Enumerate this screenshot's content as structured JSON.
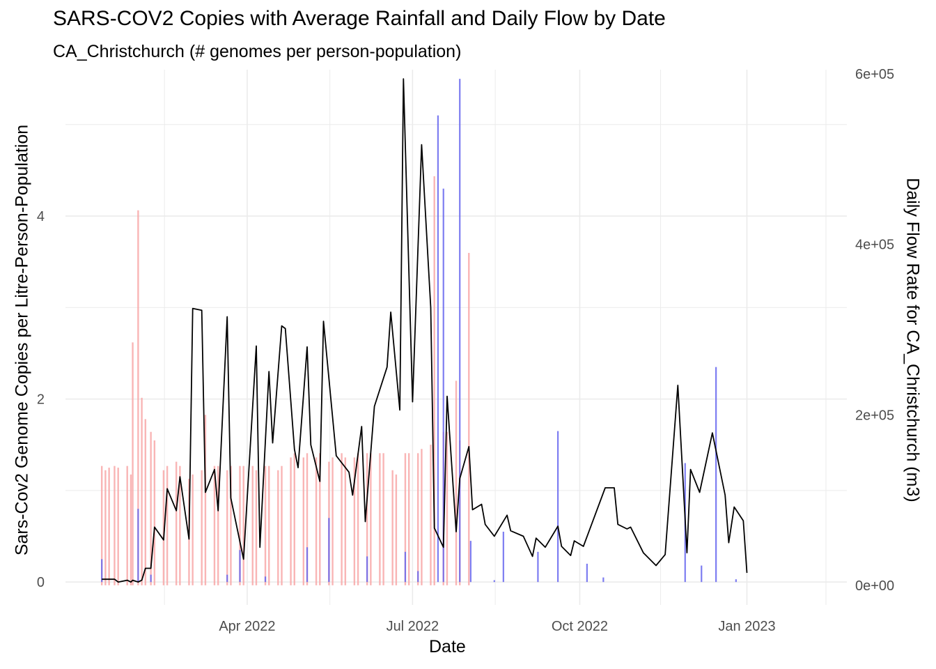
{
  "chart_data": {
    "type": "bar+line",
    "title": "SARS-COV2 Copies with Average Rainfall and Daily Flow by Date",
    "subtitle": "CA_Christchurch (# genomes per person-population)",
    "xlabel": "Date",
    "ylabel": "Sars-Cov2 Genome Copies per Litre-Person-Population",
    "y2label": "Daily Flow Rate for CA_Christchurch (m3)",
    "x_ticks": [
      "Apr 2022",
      "Jul 2022",
      "Oct 2022",
      "Jan 2023"
    ],
    "x_tick_dates": [
      "2022-04-01",
      "2022-07-01",
      "2022-10-01",
      "2023-01-01"
    ],
    "xlim": [
      "2021-12-22",
      "2023-02-25"
    ],
    "y_ticks": [
      "0",
      "2",
      "4"
    ],
    "ylim": [
      -0.25,
      5.6
    ],
    "y2_ticks": [
      "0e+00",
      "2e+05",
      "4e+05",
      "6e+05"
    ],
    "y2lim": [
      -23000,
      605000
    ],
    "grid": true,
    "colors": {
      "line": "#000000",
      "rain_bar": "#f8a8a8",
      "sars_bar": "#6666ee",
      "gridline": "#ebebeb"
    },
    "series": [
      {
        "kind": "bar",
        "axis": "y2",
        "color": "#f8a8a8",
        "points": [
          [
            "2022-01-11",
            140000
          ],
          [
            "2022-01-13",
            135000
          ],
          [
            "2022-01-15",
            138000
          ],
          [
            "2022-01-18",
            140000
          ],
          [
            "2022-01-20",
            138000
          ],
          [
            "2022-01-25",
            140000
          ],
          [
            "2022-01-27",
            130000
          ],
          [
            "2022-01-28",
            285000
          ],
          [
            "2022-01-31",
            440000
          ],
          [
            "2022-02-02",
            220000
          ],
          [
            "2022-02-04",
            195000
          ],
          [
            "2022-02-07",
            180000
          ],
          [
            "2022-02-09",
            170000
          ],
          [
            "2022-02-14",
            135000
          ],
          [
            "2022-02-16",
            140000
          ],
          [
            "2022-02-21",
            145000
          ],
          [
            "2022-02-23",
            140000
          ],
          [
            "2022-02-28",
            125000
          ],
          [
            "2022-03-02",
            130000
          ],
          [
            "2022-03-07",
            135000
          ],
          [
            "2022-03-09",
            200000
          ],
          [
            "2022-03-14",
            140000
          ],
          [
            "2022-03-16",
            140000
          ],
          [
            "2022-03-21",
            135000
          ],
          [
            "2022-03-23",
            140000
          ],
          [
            "2022-03-28",
            140000
          ],
          [
            "2022-03-30",
            140000
          ],
          [
            "2022-04-04",
            140000
          ],
          [
            "2022-04-06",
            135000
          ],
          [
            "2022-04-11",
            140000
          ],
          [
            "2022-04-13",
            140000
          ],
          [
            "2022-04-18",
            135000
          ],
          [
            "2022-04-20",
            140000
          ],
          [
            "2022-04-25",
            150000
          ],
          [
            "2022-04-27",
            155000
          ],
          [
            "2022-05-02",
            150000
          ],
          [
            "2022-05-04",
            155000
          ],
          [
            "2022-05-09",
            150000
          ],
          [
            "2022-05-11",
            155000
          ],
          [
            "2022-05-16",
            145000
          ],
          [
            "2022-05-18",
            150000
          ],
          [
            "2022-05-23",
            155000
          ],
          [
            "2022-05-25",
            150000
          ],
          [
            "2022-05-30",
            150000
          ],
          [
            "2022-06-01",
            155000
          ],
          [
            "2022-06-06",
            155000
          ],
          [
            "2022-06-08",
            155000
          ],
          [
            "2022-06-13",
            155000
          ],
          [
            "2022-06-15",
            155000
          ],
          [
            "2022-06-20",
            135000
          ],
          [
            "2022-06-22",
            130000
          ],
          [
            "2022-06-27",
            155000
          ],
          [
            "2022-06-29",
            155000
          ],
          [
            "2022-07-04",
            155000
          ],
          [
            "2022-07-06",
            160000
          ],
          [
            "2022-07-11",
            165000
          ],
          [
            "2022-07-13",
            480000
          ],
          [
            "2022-07-18",
            180000
          ],
          [
            "2022-07-20",
            180000
          ],
          [
            "2022-07-25",
            240000
          ],
          [
            "2022-07-27",
            170000
          ],
          [
            "2022-08-01",
            390000
          ]
        ]
      },
      {
        "kind": "bar",
        "axis": "y",
        "color": "#6666ee",
        "points": [
          [
            "2022-01-11",
            0.25
          ],
          [
            "2022-01-31",
            0.8
          ],
          [
            "2022-02-07",
            0.08
          ],
          [
            "2022-03-21",
            0.08
          ],
          [
            "2022-03-28",
            0.35
          ],
          [
            "2022-04-11",
            0.06
          ],
          [
            "2022-05-04",
            0.38
          ],
          [
            "2022-05-16",
            0.7
          ],
          [
            "2022-06-06",
            0.28
          ],
          [
            "2022-06-27",
            0.33
          ],
          [
            "2022-07-04",
            0.12
          ],
          [
            "2022-07-15",
            5.1
          ],
          [
            "2022-07-18",
            4.3
          ],
          [
            "2022-07-27",
            5.5
          ],
          [
            "2022-08-02",
            0.45
          ],
          [
            "2022-08-15",
            0.02
          ],
          [
            "2022-08-20",
            0.55
          ],
          [
            "2022-09-08",
            0.33
          ],
          [
            "2022-09-19",
            1.65
          ],
          [
            "2022-10-05",
            0.2
          ],
          [
            "2022-10-14",
            0.05
          ],
          [
            "2022-11-28",
            1.3
          ],
          [
            "2022-12-07",
            0.18
          ],
          [
            "2022-12-15",
            2.35
          ],
          [
            "2022-12-26",
            0.03
          ]
        ]
      },
      {
        "kind": "line",
        "axis": "y",
        "color": "#000000",
        "points": [
          [
            "2022-01-11",
            0.03
          ],
          [
            "2022-01-13",
            0.03
          ],
          [
            "2022-01-18",
            0.03
          ],
          [
            "2022-01-20",
            0.0
          ],
          [
            "2022-01-25",
            0.02
          ],
          [
            "2022-01-27",
            0.0
          ],
          [
            "2022-01-28",
            0.02
          ],
          [
            "2022-01-31",
            0.0
          ],
          [
            "2022-02-02",
            0.02
          ],
          [
            "2022-02-04",
            0.15
          ],
          [
            "2022-02-07",
            0.15
          ],
          [
            "2022-02-09",
            0.6
          ],
          [
            "2022-02-14",
            0.46
          ],
          [
            "2022-02-16",
            1.02
          ],
          [
            "2022-02-21",
            0.78
          ],
          [
            "2022-02-23",
            1.15
          ],
          [
            "2022-02-28",
            0.47
          ],
          [
            "2022-03-02",
            2.99
          ],
          [
            "2022-03-07",
            2.97
          ],
          [
            "2022-03-09",
            0.98
          ],
          [
            "2022-03-14",
            1.23
          ],
          [
            "2022-03-16",
            0.78
          ],
          [
            "2022-03-21",
            2.9
          ],
          [
            "2022-03-23",
            0.92
          ],
          [
            "2022-03-30",
            0.25
          ],
          [
            "2022-04-06",
            2.58
          ],
          [
            "2022-04-08",
            0.38
          ],
          [
            "2022-04-13",
            2.3
          ],
          [
            "2022-04-15",
            1.52
          ],
          [
            "2022-04-20",
            2.8
          ],
          [
            "2022-04-22",
            2.77
          ],
          [
            "2022-04-27",
            1.45
          ],
          [
            "2022-04-29",
            1.25
          ],
          [
            "2022-05-04",
            2.57
          ],
          [
            "2022-05-06",
            1.5
          ],
          [
            "2022-05-11",
            1.1
          ],
          [
            "2022-05-13",
            2.85
          ],
          [
            "2022-05-20",
            1.38
          ],
          [
            "2022-05-27",
            1.2
          ],
          [
            "2022-05-29",
            0.95
          ],
          [
            "2022-06-03",
            1.7
          ],
          [
            "2022-06-05",
            0.66
          ],
          [
            "2022-06-10",
            1.92
          ],
          [
            "2022-06-17",
            2.35
          ],
          [
            "2022-06-19",
            2.95
          ],
          [
            "2022-06-24",
            1.88
          ],
          [
            "2022-06-26",
            5.5
          ],
          [
            "2022-07-01",
            1.97
          ],
          [
            "2022-07-06",
            4.78
          ],
          [
            "2022-07-11",
            3.0
          ],
          [
            "2022-07-13",
            0.59
          ],
          [
            "2022-07-18",
            0.38
          ],
          [
            "2022-07-20",
            2.03
          ],
          [
            "2022-07-25",
            0.55
          ],
          [
            "2022-07-27",
            1.13
          ],
          [
            "2022-08-01",
            1.48
          ],
          [
            "2022-08-03",
            0.79
          ],
          [
            "2022-08-08",
            0.85
          ],
          [
            "2022-08-10",
            0.63
          ],
          [
            "2022-08-15",
            0.5
          ],
          [
            "2022-08-22",
            0.73
          ],
          [
            "2022-08-24",
            0.56
          ],
          [
            "2022-08-31",
            0.5
          ],
          [
            "2022-09-05",
            0.28
          ],
          [
            "2022-09-07",
            0.48
          ],
          [
            "2022-09-12",
            0.38
          ],
          [
            "2022-09-19",
            0.61
          ],
          [
            "2022-09-21",
            0.39
          ],
          [
            "2022-09-26",
            0.29
          ],
          [
            "2022-09-28",
            0.45
          ],
          [
            "2022-10-03",
            0.39
          ],
          [
            "2022-10-15",
            1.03
          ],
          [
            "2022-10-20",
            1.03
          ],
          [
            "2022-10-22",
            0.63
          ],
          [
            "2022-10-27",
            0.58
          ],
          [
            "2022-10-29",
            0.6
          ],
          [
            "2022-11-05",
            0.32
          ],
          [
            "2022-11-12",
            0.18
          ],
          [
            "2022-11-17",
            0.3
          ],
          [
            "2022-11-24",
            2.15
          ],
          [
            "2022-11-29",
            0.32
          ],
          [
            "2022-12-01",
            1.23
          ],
          [
            "2022-12-06",
            0.98
          ],
          [
            "2022-12-13",
            1.63
          ],
          [
            "2022-12-20",
            0.95
          ],
          [
            "2022-12-22",
            0.43
          ],
          [
            "2022-12-25",
            0.82
          ],
          [
            "2022-12-30",
            0.67
          ],
          [
            "2023-01-01",
            0.1
          ]
        ]
      }
    ]
  }
}
